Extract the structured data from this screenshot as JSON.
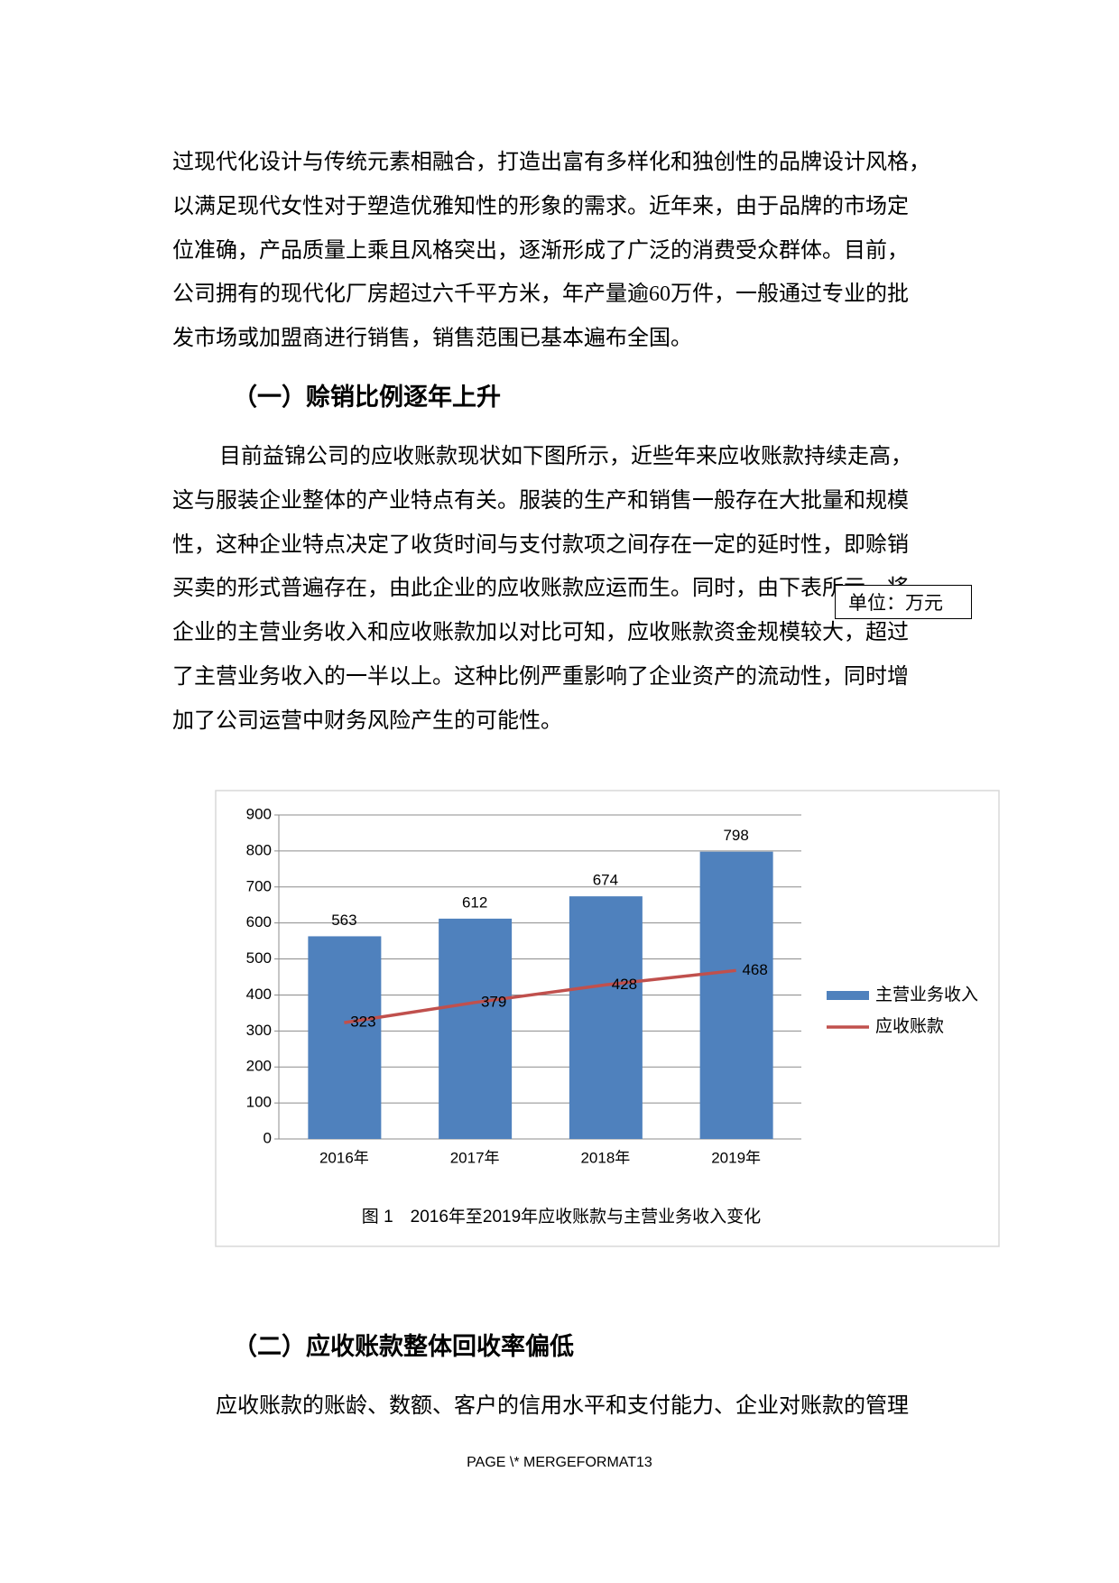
{
  "body": {
    "para1": [
      "过现代化设计与传统元素相融合，打造出富有多样化和独创性的品牌设计风格，",
      "以满足现代女性对于塑造优雅知性的形象的需求。近年来，由于品牌的市场定",
      "位准确，产品质量上乘且风格突出，逐渐形成了广泛的消费受众群体。目前，",
      "公司拥有的现代化厂房超过六千平方米，年产量逾60万件，一般通过专业的批",
      "发市场或加盟商进行销售，销售范围已基本遍布全国。"
    ],
    "heading1": "（一）赊销比例逐年上升",
    "para2": [
      "目前益锦公司的应收账款现状如下图所示，近些年来应收账款持续走高，",
      "这与服装企业整体的产业特点有关。服装的生产和销售一般存在大批量和规模",
      "性，这种企业特点决定了收货时间与支付款项之间存在一定的延时性，即赊销",
      "买卖的形式普遍存在，由此企业的应收账款应运而生。同时，由下表所示，将",
      "企业的主营业务收入和应收账款加以对比可知，应收账款资金规模较大，超过",
      "了主营业务收入的一半以上。这种比例严重影响了企业资产的流动性，同时增",
      "加了公司运营中财务风险产生的可能性。"
    ],
    "unit_note": "单位：万元",
    "heading2": "（二）应收账款整体回收率偏低",
    "para3": [
      "应收账款的账龄、数额、客户的信用水平和支付能力、企业对账款的管理"
    ]
  },
  "chart_data": {
    "type": "bar",
    "title": "图 1　2016年至2019年应收账款与主营业务收入变化",
    "categories": [
      "2016年",
      "2017年",
      "2018年",
      "2019年"
    ],
    "series": [
      {
        "name": "主营业务收入",
        "type": "bar",
        "color": "#4f81bd",
        "values": [
          563,
          612,
          674,
          798
        ]
      },
      {
        "name": "应收账款",
        "type": "line",
        "color": "#c0504d",
        "values": [
          323,
          379,
          428,
          468
        ]
      }
    ],
    "ylim": [
      0,
      900
    ],
    "yticks": [
      0,
      100,
      200,
      300,
      400,
      500,
      600,
      700,
      800,
      900
    ],
    "grid": true,
    "legend": "right"
  },
  "footer": "PAGE \\* MERGEFORMAT13"
}
